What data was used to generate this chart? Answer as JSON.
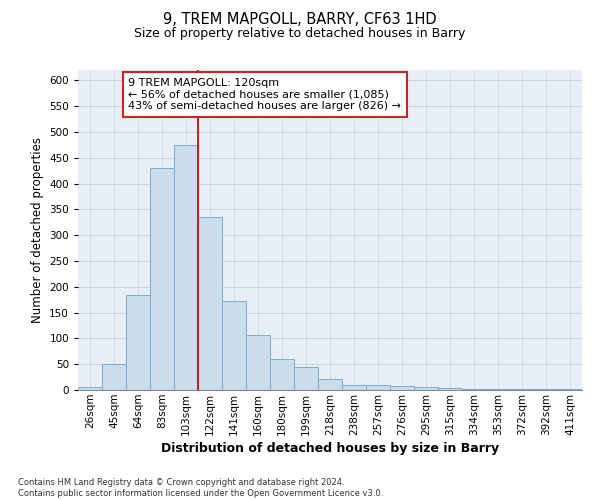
{
  "title1": "9, TREM MAPGOLL, BARRY, CF63 1HD",
  "title2": "Size of property relative to detached houses in Barry",
  "xlabel": "Distribution of detached houses by size in Barry",
  "ylabel": "Number of detached properties",
  "categories": [
    "26sqm",
    "45sqm",
    "64sqm",
    "83sqm",
    "103sqm",
    "122sqm",
    "141sqm",
    "160sqm",
    "180sqm",
    "199sqm",
    "218sqm",
    "238sqm",
    "257sqm",
    "276sqm",
    "295sqm",
    "315sqm",
    "334sqm",
    "353sqm",
    "372sqm",
    "392sqm",
    "411sqm"
  ],
  "values": [
    5,
    50,
    185,
    430,
    475,
    335,
    172,
    107,
    60,
    44,
    22,
    10,
    10,
    8,
    5,
    3,
    2,
    2,
    1,
    2,
    1
  ],
  "bar_color": "#c9dded",
  "bar_edge_color": "#7aadd4",
  "grid_color": "#c8d4e3",
  "background_color": "#e8eef5",
  "vline_color": "#bb1111",
  "annotation_line1": "9 TREM MAPGOLL: 120sqm",
  "annotation_line2": "← 56% of detached houses are smaller (1,085)",
  "annotation_line3": "43% of semi-detached houses are larger (826) →",
  "footer": "Contains HM Land Registry data © Crown copyright and database right 2024.\nContains public sector information licensed under the Open Government Licence v3.0.",
  "ylim": [
    0,
    620
  ],
  "yticks": [
    0,
    50,
    100,
    150,
    200,
    250,
    300,
    350,
    400,
    450,
    500,
    550,
    600
  ]
}
